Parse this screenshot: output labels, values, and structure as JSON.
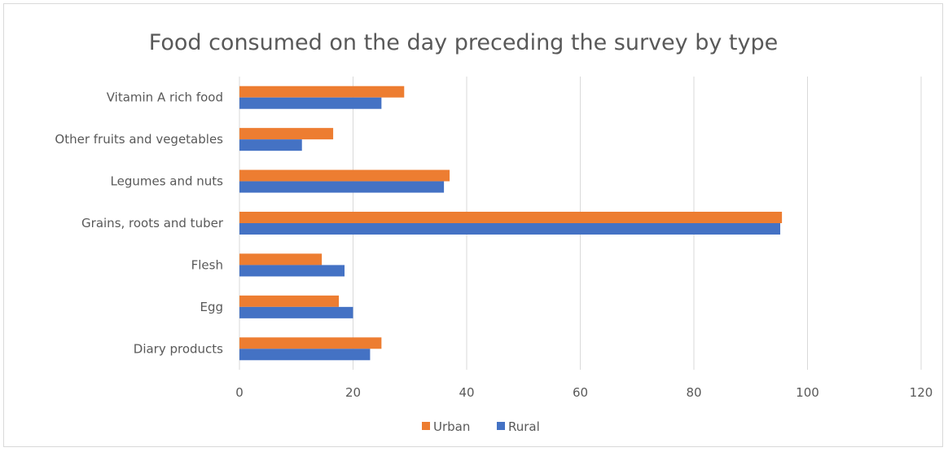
{
  "chart_data": {
    "type": "bar",
    "orientation": "horizontal",
    "title": "Food consumed on the day preceding the survey by type",
    "categories": [
      "Vitamin A rich food",
      "Other fruits and vegetables",
      "Legumes and nuts",
      "Grains, roots and tuber",
      "Flesh",
      "Egg",
      "Diary products"
    ],
    "series": [
      {
        "name": "Urban",
        "color": "#ed7d31",
        "values": [
          29,
          16.5,
          37,
          95.5,
          14.5,
          17.5,
          25
        ]
      },
      {
        "name": "Rural",
        "color": "#4472c4",
        "values": [
          25,
          11,
          36,
          95.2,
          18.5,
          20,
          23
        ]
      }
    ],
    "xlim": [
      0,
      120
    ],
    "xticks": [
      0,
      20,
      40,
      60,
      80,
      100,
      120
    ],
    "grid": true,
    "legend": "bottom-center"
  }
}
